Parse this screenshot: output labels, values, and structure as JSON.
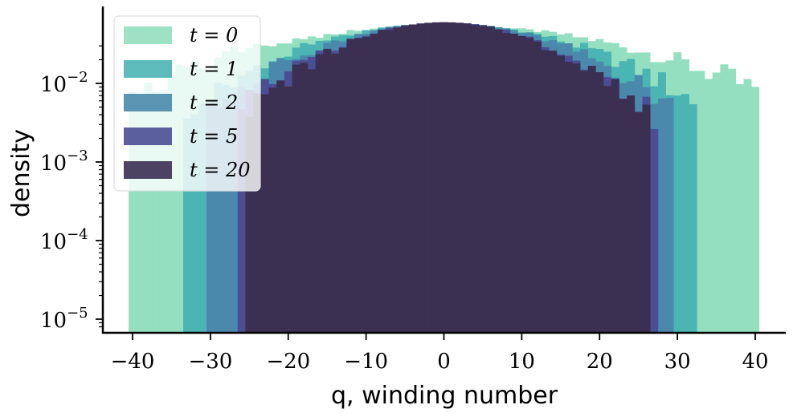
{
  "chart_data": {
    "type": "bar",
    "xlabel": "q, winding number",
    "ylabel": "density",
    "xlim": [
      -42.5,
      43
    ],
    "ylim_log10": [
      -5.15,
      -1.4
    ],
    "y_scale": "log",
    "grid": false,
    "legend_position": "top-left",
    "x_ticks": [
      -40,
      -30,
      -20,
      -10,
      0,
      10,
      20,
      30,
      40
    ],
    "x_tick_labels": [
      "−40",
      "−30",
      "−20",
      "−10",
      "0",
      "10",
      "20",
      "30",
      "40"
    ],
    "y_ticks_exponent": [
      -5,
      -4,
      -3,
      -2
    ],
    "y_tick_labels": [
      {
        "base": "10",
        "exp": "−5"
      },
      {
        "base": "10",
        "exp": "−4"
      },
      {
        "base": "10",
        "exp": "−3"
      },
      {
        "base": "10",
        "exp": "−2"
      }
    ],
    "series": [
      {
        "name": "t = 0",
        "color": "#93dfc0",
        "support": [
          -40,
          40
        ],
        "width": 20.6,
        "peak": 0.055
      },
      {
        "name": "t = 1",
        "color": "#4bb5b4",
        "support": [
          -33,
          32
        ],
        "width": 15.05,
        "peak": 0.058
      },
      {
        "name": "t = 2",
        "color": "#4a89ac",
        "support": [
          -30,
          29
        ],
        "width": 13.2,
        "peak": 0.059
      },
      {
        "name": "t = 5",
        "color": "#4b4e93",
        "support": [
          -26,
          27
        ],
        "width": 11.45,
        "peak": 0.06
      },
      {
        "name": "t = 20",
        "color": "#3b2f52",
        "support": [
          -25,
          26
        ],
        "width": 11.0,
        "peak": 0.06
      }
    ],
    "legend_labels": [
      "t = 0",
      "t = 1",
      "t = 2",
      "t = 5",
      "t = 20"
    ]
  }
}
